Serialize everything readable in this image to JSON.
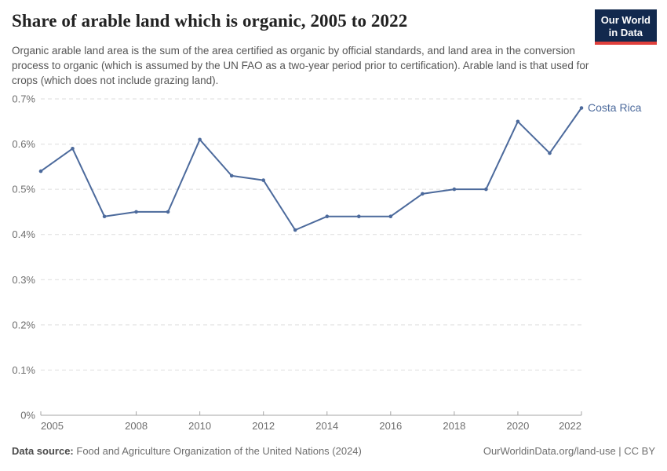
{
  "header": {
    "title": "Share of arable land which is organic, 2005 to 2022",
    "subtitle": "Organic arable land area is the sum of the area certified as organic by official standards, and land area in the conversion process to organic (which is assumed by the UN FAO as a two-year period prior to certification). Arable land is that used for crops (which does not include grazing land).",
    "logo": {
      "line1": "Our World",
      "line2": "in Data",
      "bg_color": "#12294e",
      "bar_color": "#e0403c"
    }
  },
  "footer": {
    "source_label": "Data source:",
    "source_value": "Food and Agriculture Organization of the United Nations (2024)",
    "link": "OurWorldinData.org/land-use | CC BY"
  },
  "chart_data": {
    "type": "line",
    "title": "Share of arable land which is organic, 2005 to 2022",
    "x": [
      2005,
      2006,
      2007,
      2008,
      2009,
      2010,
      2011,
      2012,
      2013,
      2014,
      2015,
      2016,
      2017,
      2018,
      2019,
      2020,
      2021,
      2022
    ],
    "series": [
      {
        "name": "Costa Rica",
        "color": "#4c6a9c",
        "values": [
          0.54,
          0.59,
          0.44,
          0.45,
          0.45,
          0.61,
          0.53,
          0.52,
          0.41,
          0.44,
          0.44,
          0.44,
          0.49,
          0.5,
          0.5,
          0.65,
          0.58,
          0.68
        ]
      }
    ],
    "unit": "%",
    "xlim": [
      2005,
      2022
    ],
    "ylim": [
      0,
      0.7
    ],
    "x_ticks": [
      2005,
      2008,
      2010,
      2012,
      2014,
      2016,
      2018,
      2020,
      2022
    ],
    "y_ticks": [
      {
        "value": 0,
        "label": "0%"
      },
      {
        "value": 0.1,
        "label": "0.1%"
      },
      {
        "value": 0.2,
        "label": "0.2%"
      },
      {
        "value": 0.3,
        "label": "0.3%"
      },
      {
        "value": 0.4,
        "label": "0.4%"
      },
      {
        "value": 0.5,
        "label": "0.5%"
      },
      {
        "value": 0.6,
        "label": "0.6%"
      },
      {
        "value": 0.7,
        "label": "0.7%"
      }
    ],
    "grid": "horizontal-dashed",
    "legend_position": "end-of-line"
  }
}
